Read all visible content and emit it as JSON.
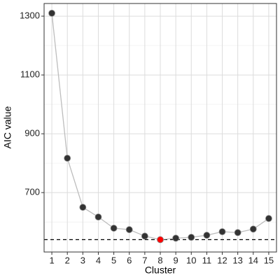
{
  "chart_data": {
    "type": "line",
    "x_label": "Cluster",
    "y_label": "AIC value",
    "x": [
      1,
      2,
      3,
      4,
      5,
      6,
      7,
      8,
      9,
      10,
      11,
      12,
      13,
      14,
      15
    ],
    "series": [
      {
        "color": "#333333",
        "line_color": "#bdbdbd",
        "values": [
          1310,
          817,
          650,
          617,
          579,
          574,
          552,
          540,
          545,
          548,
          555,
          567,
          564,
          576,
          612
        ],
        "point_colors": [
          "#333333",
          "#333333",
          "#333333",
          "#333333",
          "#333333",
          "#333333",
          "#333333",
          "#ff0000",
          "#333333",
          "#333333",
          "#333333",
          "#333333",
          "#333333",
          "#333333",
          "#333333"
        ]
      }
    ],
    "reference_line": 540,
    "xlim": [
      0.5,
      15.5
    ],
    "xticks": [
      1,
      2,
      3,
      4,
      5,
      6,
      7,
      8,
      9,
      10,
      11,
      12,
      13,
      14,
      15
    ],
    "ylim": [
      498,
      1343
    ],
    "yticks": [
      700,
      900,
      1100,
      1300
    ],
    "minor_yticks": [
      600,
      800,
      1000,
      1200
    ],
    "grid": true
  }
}
